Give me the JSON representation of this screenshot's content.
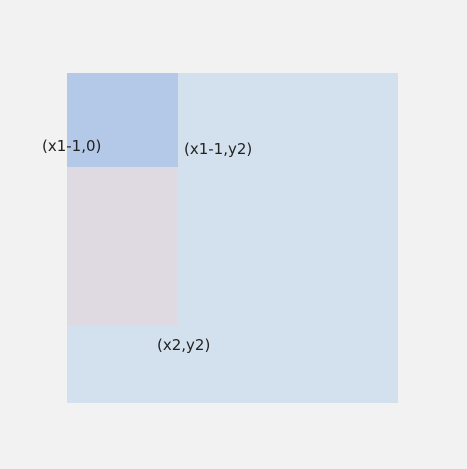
{
  "labels": {
    "point_a": "(x1-1,0)",
    "point_b": "(x1-1,y2)",
    "point_c": "(x2,y2)"
  },
  "colors": {
    "background": "#f2f2f2",
    "outer_region": "#d3e1ef",
    "top_left_region": "#b4c8e8",
    "middle_left_region": "#dfd9e2",
    "text": "#222222"
  }
}
